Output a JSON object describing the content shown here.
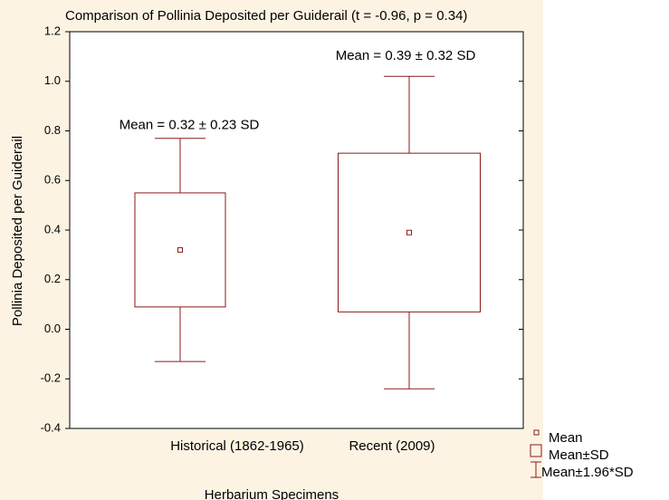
{
  "chart_data": {
    "type": "box",
    "title": "Comparison of Pollinia Deposited per Guiderail (t = -0.96, p = 0.34)",
    "x_label": "Herbarium Specimens",
    "y_label": "Pollinia Deposited per Guiderail",
    "categories": [
      "Historical (1862-1965)",
      "Recent (2009)"
    ],
    "means": [
      0.32,
      0.39
    ],
    "sd_low": [
      0.09,
      0.07
    ],
    "sd_high": [
      0.55,
      0.71
    ],
    "ci_low": [
      -0.13,
      -0.24
    ],
    "ci_high": [
      0.77,
      1.02
    ],
    "annotations": [
      "Mean = 0.32 ± 0.23 SD",
      "Mean = 0.39 ± 0.32 SD"
    ],
    "legend": [
      "Mean",
      "Mean±SD",
      "Mean±1.96*SD"
    ],
    "color": "#8b1a1a",
    "ylim": [
      -0.4,
      1.2
    ],
    "yticks": [
      -0.4,
      -0.2,
      {
        "value": 0,
        "label": "0.0"
      },
      0.2,
      0.4,
      0.6,
      0.8,
      {
        "value": 1,
        "label": "1.0"
      },
      1.2
    ]
  }
}
